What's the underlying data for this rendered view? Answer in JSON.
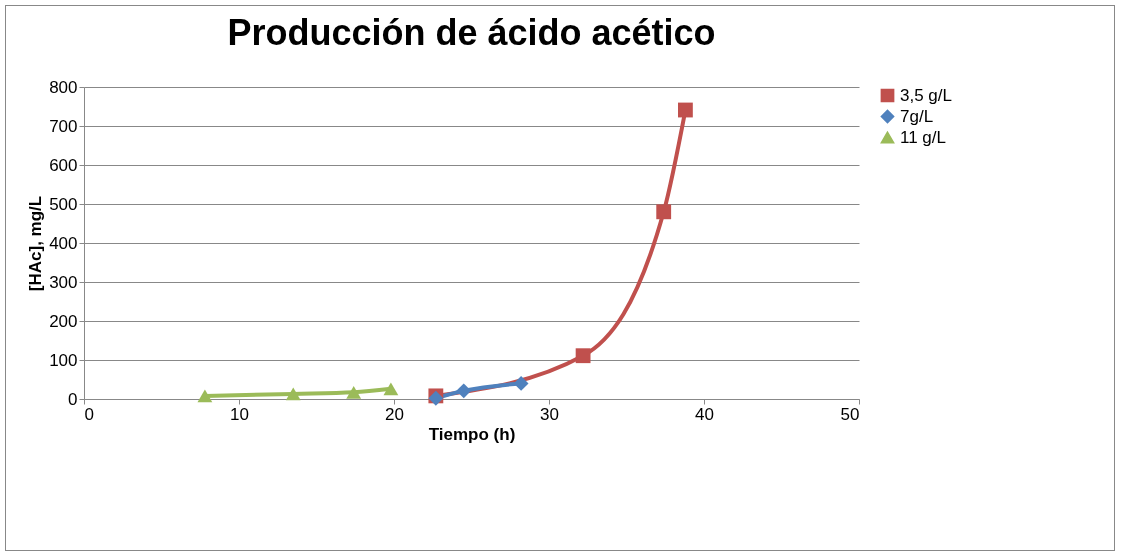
{
  "chart_data": {
    "type": "line",
    "title": "Producción de ácido acético",
    "xlabel": "Tiempo (h)",
    "ylabel": "[HAc], mg/L",
    "xlim": [
      0,
      50
    ],
    "xticks": [
      0,
      10,
      20,
      30,
      40,
      50
    ],
    "ylim": [
      0,
      800
    ],
    "yticks": [
      0,
      100,
      200,
      300,
      400,
      500,
      600,
      700,
      800
    ],
    "grid": "y",
    "legend": "right",
    "series": [
      {
        "name": "3,5 g/L",
        "color": "#c0504d",
        "marker": "square",
        "x": [
          22.7,
          32.2,
          37.4,
          38.8
        ],
        "values": [
          8,
          111,
          480,
          741
        ]
      },
      {
        "name": "7g/L",
        "color": "#4f81bd",
        "marker": "diamond",
        "x": [
          22.7,
          24.5,
          28.2
        ],
        "values": [
          2,
          21,
          40
        ]
      },
      {
        "name": "11 g/L",
        "color": "#9bbb59",
        "marker": "triangle",
        "x": [
          7.8,
          13.5,
          17.4,
          19.8
        ],
        "values": [
          8,
          13,
          17,
          26
        ]
      }
    ]
  }
}
